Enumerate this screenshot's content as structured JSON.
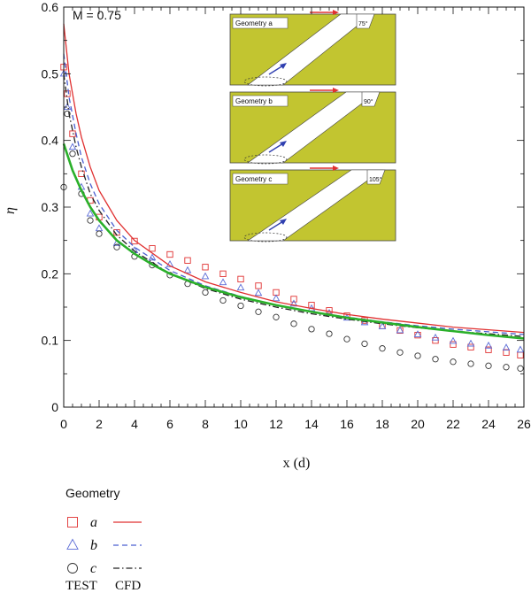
{
  "chart_data": {
    "type": "scatter",
    "xlabel": "x (d)",
    "ylabel": "η",
    "xlim": [
      0,
      26
    ],
    "ylim": [
      0,
      0.6
    ],
    "x_ticks": [
      "0",
      "2",
      "4",
      "6",
      "8",
      "10",
      "12",
      "14",
      "16",
      "18",
      "20",
      "22",
      "24",
      "26"
    ],
    "y_ticks": [
      "0",
      "0.1",
      "0.2",
      "0.3",
      "0.4",
      "0.5",
      "0.6"
    ],
    "annotation": "M = 0.75",
    "grid": false,
    "legend": {
      "title": "Geometry",
      "entries": [
        "a",
        "b",
        "c"
      ],
      "test_label": "TEST",
      "cfd_label": "CFD"
    },
    "insets": [
      {
        "label": "Geometry a",
        "angle": "75°"
      },
      {
        "label": "Geometry b",
        "angle": "90°"
      },
      {
        "label": "Geometry c",
        "angle": "105°"
      }
    ],
    "series": [
      {
        "name": "a",
        "kind": "TEST",
        "marker": "square",
        "color": "#e03030",
        "x": [
          0,
          0.2,
          0.5,
          1,
          1.5,
          2,
          3,
          4,
          5,
          6,
          7,
          8,
          9,
          10,
          11,
          12,
          13,
          14,
          15,
          16,
          17,
          18,
          19,
          20,
          21,
          22,
          23,
          24,
          25,
          25.8
        ],
        "y": [
          0.51,
          0.47,
          0.41,
          0.35,
          0.31,
          0.285,
          0.262,
          0.249,
          0.238,
          0.229,
          0.22,
          0.21,
          0.2,
          0.192,
          0.182,
          0.172,
          0.162,
          0.153,
          0.145,
          0.137,
          0.13,
          0.122,
          0.115,
          0.108,
          0.1,
          0.094,
          0.09,
          0.086,
          0.082,
          0.078
        ]
      },
      {
        "name": "b",
        "kind": "TEST",
        "marker": "triangle",
        "color": "#5a6bd6",
        "x": [
          0,
          0.2,
          0.5,
          1,
          1.5,
          2,
          3,
          4,
          5,
          6,
          7,
          8,
          9,
          10,
          11,
          12,
          13,
          14,
          15,
          16,
          17,
          18,
          19,
          20,
          21,
          22,
          23,
          24,
          25,
          25.8
        ],
        "y": [
          0.5,
          0.45,
          0.39,
          0.33,
          0.29,
          0.268,
          0.246,
          0.235,
          0.224,
          0.214,
          0.205,
          0.196,
          0.187,
          0.179,
          0.171,
          0.163,
          0.155,
          0.148,
          0.141,
          0.134,
          0.127,
          0.121,
          0.115,
          0.109,
          0.104,
          0.099,
          0.095,
          0.092,
          0.089,
          0.086
        ]
      },
      {
        "name": "c",
        "kind": "TEST",
        "marker": "circle",
        "color": "#333333",
        "x": [
          0,
          0.2,
          0.5,
          1,
          1.5,
          2,
          3,
          4,
          5,
          6,
          7,
          8,
          9,
          10,
          11,
          12,
          13,
          14,
          15,
          16,
          17,
          18,
          19,
          20,
          21,
          22,
          23,
          24,
          25,
          25.8
        ],
        "y": [
          0.33,
          0.44,
          0.38,
          0.32,
          0.28,
          0.26,
          0.24,
          0.226,
          0.213,
          0.198,
          0.185,
          0.172,
          0.16,
          0.152,
          0.143,
          0.135,
          0.125,
          0.117,
          0.11,
          0.102,
          0.095,
          0.088,
          0.082,
          0.077,
          0.072,
          0.068,
          0.065,
          0.062,
          0.06,
          0.058
        ]
      },
      {
        "name": "a",
        "kind": "CFD",
        "style": "solid",
        "color": "#e03030",
        "x": [
          0,
          0.3,
          0.7,
          1,
          1.5,
          2,
          3,
          4,
          6,
          8,
          10,
          12,
          14,
          16,
          18,
          20,
          22,
          24,
          26
        ],
        "y": [
          0.575,
          0.5,
          0.44,
          0.405,
          0.36,
          0.325,
          0.28,
          0.25,
          0.212,
          0.188,
          0.172,
          0.158,
          0.148,
          0.139,
          0.132,
          0.126,
          0.12,
          0.116,
          0.112
        ]
      },
      {
        "name": "b",
        "kind": "CFD",
        "style": "dashed",
        "color": "#4a5fd0",
        "x": [
          0,
          0.3,
          0.7,
          1,
          1.5,
          2,
          3,
          4,
          6,
          8,
          10,
          12,
          14,
          16,
          18,
          20,
          22,
          24,
          26
        ],
        "y": [
          0.53,
          0.465,
          0.41,
          0.375,
          0.335,
          0.305,
          0.265,
          0.24,
          0.205,
          0.182,
          0.166,
          0.153,
          0.143,
          0.135,
          0.128,
          0.122,
          0.117,
          0.113,
          0.109
        ]
      },
      {
        "name": "c",
        "kind": "CFD",
        "style": "dashdot",
        "color": "#222222",
        "x": [
          0,
          0.3,
          0.7,
          1,
          1.5,
          2,
          3,
          4,
          6,
          8,
          10,
          12,
          14,
          16,
          18,
          20,
          22,
          24,
          26
        ],
        "y": [
          0.5,
          0.44,
          0.39,
          0.36,
          0.32,
          0.295,
          0.258,
          0.234,
          0.2,
          0.178,
          0.162,
          0.15,
          0.14,
          0.132,
          0.125,
          0.119,
          0.114,
          0.11,
          0.106
        ]
      },
      {
        "name": "",
        "kind": "fit",
        "style": "solid",
        "color": "#2ab02a",
        "x": [
          0,
          0.5,
          1,
          1.5,
          2,
          3,
          4,
          5,
          6,
          8,
          10,
          12,
          14,
          16,
          18,
          20,
          22,
          24,
          26
        ],
        "y": [
          0.395,
          0.355,
          0.325,
          0.3,
          0.28,
          0.25,
          0.23,
          0.214,
          0.2,
          0.18,
          0.165,
          0.153,
          0.143,
          0.134,
          0.127,
          0.12,
          0.114,
          0.108,
          0.103
        ]
      }
    ]
  }
}
